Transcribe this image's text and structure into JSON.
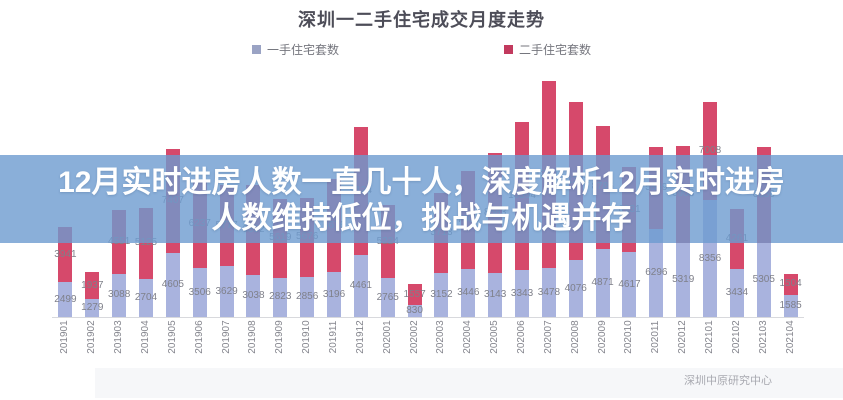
{
  "header": {
    "title": "深圳一二手住宅成交月度走势"
  },
  "legend": {
    "items": [
      {
        "label": "一手住宅套数",
        "color": "#9aa3c4"
      },
      {
        "label": "二手住宅套数",
        "color": "#c23a5e"
      }
    ]
  },
  "overlay_banner": {
    "line1": "12月实时进房人数一直几十人，深度解析12月实时进房",
    "line2": "人数维持低位，挑战与机遇并存",
    "background_color": "#6d9bcf",
    "text_color": "#ffffff"
  },
  "footer": {
    "source": "深圳中原研究中心"
  },
  "chart_data": {
    "type": "bar",
    "stacked": true,
    "title": "深圳一二手住宅成交月度走势",
    "categories": [
      "201901",
      "201902",
      "201903",
      "201904",
      "201905",
      "201906",
      "201907",
      "201908",
      "201909",
      "201910",
      "201911",
      "201912",
      "202001",
      "202002",
      "202003",
      "202004",
      "202005",
      "202006",
      "202007",
      "202008",
      "202009",
      "202010",
      "202011",
      "202012",
      "202101",
      "202102",
      "202103",
      "202104"
    ],
    "series": [
      {
        "name": "一手住宅套数",
        "color": "#a9b3de",
        "values": [
          2499,
          1279,
          3088,
          2704,
          4605,
          3506,
          3629,
          3038,
          2823,
          2856,
          3196,
          4461,
          2765,
          830,
          3152,
          3446,
          3143,
          3343,
          3478,
          4076,
          4871,
          4617,
          6296,
          5319,
          8356,
          3434,
          5305,
          1585
        ]
      },
      {
        "name": "二手住宅套数",
        "color": "#d6496b",
        "values": [
          3941,
          1937,
          4551,
          5125,
          7407,
          6237,
          5777,
          6392,
          5619,
          5676,
          6676,
          9124,
          5224,
          1557,
          5713,
          7004,
          8583,
          10594,
          13407,
          11322,
          8786,
          6131,
          5859,
          6908,
          7008,
          4261,
          6850,
          1504
        ]
      }
    ],
    "value_labels": true,
    "value_label_color": "#7f808a",
    "axis_line_color": "#d8d9dd",
    "legend_position": "top",
    "grid": false,
    "y_axis_visible": false,
    "units_per_pixel": 71.5,
    "source_note": "深圳中原研究中心"
  }
}
